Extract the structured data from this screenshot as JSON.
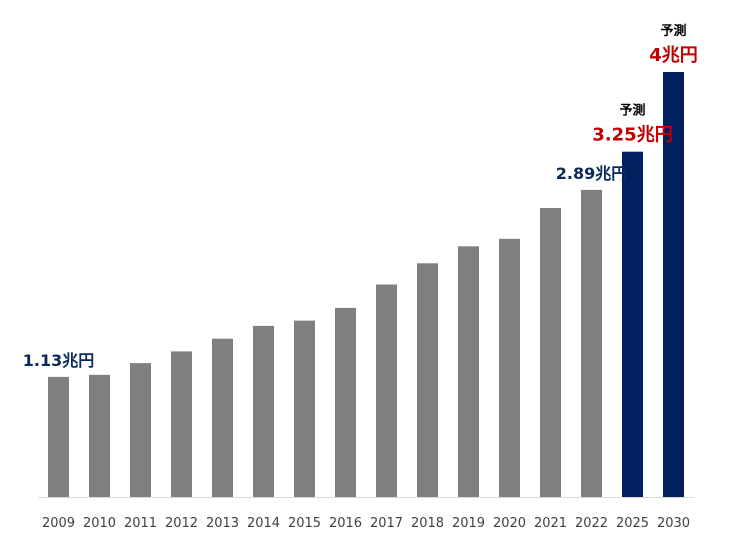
{
  "colors": {
    "historical_bar": "#7f7f7f",
    "forecast_bar": "#002060",
    "navy_label": "#0b2a5b",
    "red_label": "#c00000",
    "axis": "#d9d9d9"
  },
  "chart_data": {
    "type": "bar",
    "title": "",
    "xlabel": "",
    "ylabel": "",
    "ylim": [
      0,
      4.2
    ],
    "unit": "兆円",
    "categories": [
      "2009",
      "2010",
      "2011",
      "2012",
      "2013",
      "2014",
      "2015",
      "2016",
      "2017",
      "2018",
      "2019",
      "2020",
      "2021",
      "2022",
      "2025",
      "2030"
    ],
    "series": [
      {
        "values": [
          1.13,
          1.15,
          1.26,
          1.37,
          1.49,
          1.61,
          1.66,
          1.78,
          2.0,
          2.2,
          2.36,
          2.43,
          2.72,
          2.89,
          3.25,
          4.0
        ],
        "forecast": [
          false,
          false,
          false,
          false,
          false,
          false,
          false,
          false,
          false,
          false,
          false,
          false,
          false,
          false,
          true,
          true
        ]
      }
    ],
    "annotations": [
      {
        "category": "2009",
        "value": 1.13,
        "text": "1.13兆円",
        "style": "navy"
      },
      {
        "category": "2022",
        "value": 2.89,
        "text": "2.89兆円",
        "style": "navy"
      },
      {
        "category": "2025",
        "value": 3.25,
        "text": "3.25兆円",
        "style": "red",
        "note": "予測"
      },
      {
        "category": "2030",
        "value": 4.0,
        "text": "4兆円",
        "style": "red",
        "note": "予測"
      }
    ]
  }
}
